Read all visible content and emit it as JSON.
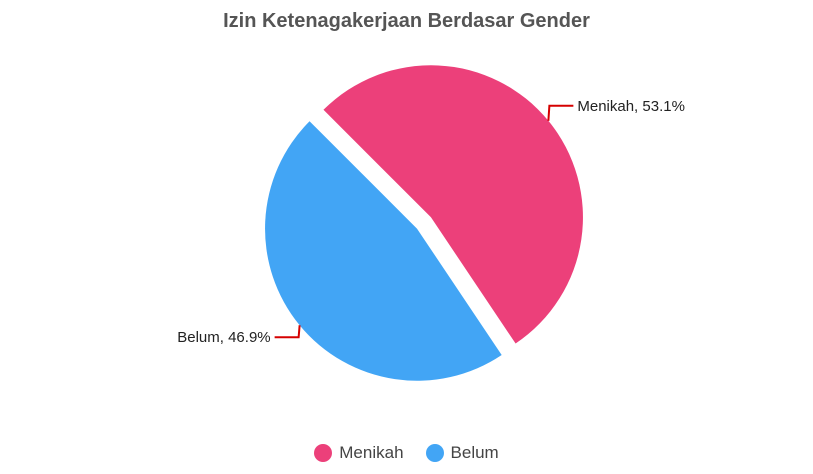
{
  "chart_data": {
    "type": "pie",
    "title": "Izin Ketenagakerjaan Berdasar Gender",
    "slices": [
      {
        "name": "Menikah",
        "value": 53.1,
        "label": "Menikah, 53.1%",
        "color": "#ec407a"
      },
      {
        "name": "Belum",
        "value": 46.9,
        "label": "Belum, 46.9%",
        "color": "#42a5f5"
      }
    ],
    "legend_position": "bottom",
    "leader_line_color": "#d50000"
  }
}
